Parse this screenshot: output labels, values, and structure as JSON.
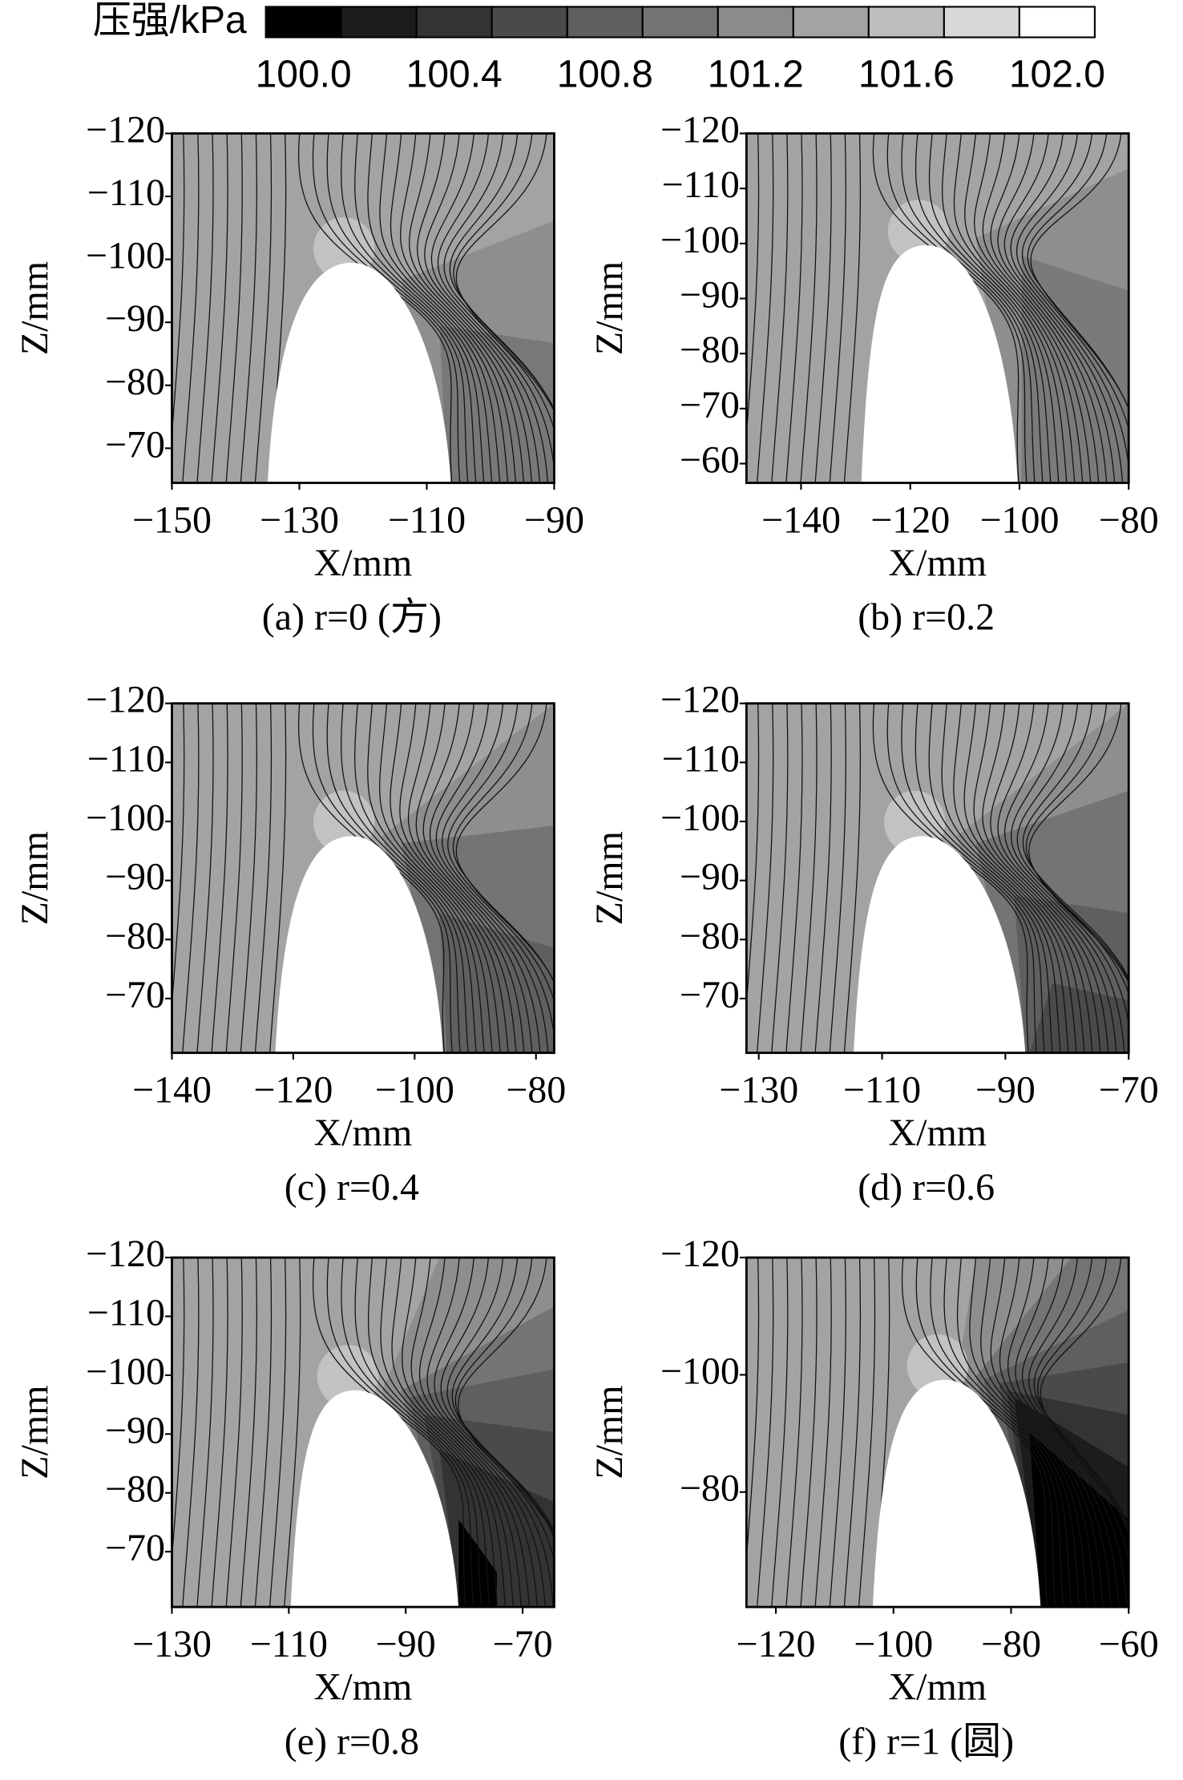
{
  "colorbar": {
    "label": "压强/kPa",
    "levels": [
      100.0,
      100.2,
      100.4,
      100.6,
      100.8,
      101.0,
      101.2,
      101.4,
      101.6,
      101.8,
      102.0
    ],
    "colors": [
      "#000000",
      "#1c1c1c",
      "#333333",
      "#4a4a4a",
      "#5f5f5f",
      "#747474",
      "#8b8b8b",
      "#a3a3a3",
      "#bdbdbd",
      "#d8d8d8",
      "#ffffff"
    ],
    "ticks": [
      {
        "value": 100.0,
        "label": "100.0"
      },
      {
        "value": 100.4,
        "label": "100.4"
      },
      {
        "value": 100.8,
        "label": "100.8"
      },
      {
        "value": 101.2,
        "label": "101.2"
      },
      {
        "value": 101.6,
        "label": "101.6"
      },
      {
        "value": 102.0,
        "label": "102.0"
      }
    ]
  },
  "chart_data": [
    {
      "type": "contour",
      "caption": "(a) r=0 (方)",
      "x_label": "X/mm",
      "y_label": "Z/mm",
      "xlim": [
        -150,
        -90
      ],
      "xticks": [
        {
          "value": -150,
          "label": "−150"
        },
        {
          "value": -130,
          "label": "−130"
        },
        {
          "value": -110,
          "label": "−110"
        },
        {
          "value": -90,
          "label": "−90"
        }
      ],
      "ylim": [
        -120,
        -64.5
      ],
      "yticks": [
        {
          "value": -120,
          "label": "−120"
        },
        {
          "value": -110,
          "label": "−110"
        },
        {
          "value": -100,
          "label": "−100"
        },
        {
          "value": -90,
          "label": "−90"
        },
        {
          "value": -80,
          "label": "−80"
        },
        {
          "value": -70,
          "label": "−70"
        }
      ]
    },
    {
      "type": "contour",
      "caption": "(b) r=0.2",
      "x_label": "X/mm",
      "y_label": "Z/mm",
      "xlim": [
        -150,
        -80
      ],
      "xticks": [
        {
          "value": -140,
          "label": "−140"
        },
        {
          "value": -120,
          "label": "−120"
        },
        {
          "value": -100,
          "label": "−100"
        },
        {
          "value": -80,
          "label": "−80"
        }
      ],
      "ylim": [
        -120,
        -56.5
      ],
      "yticks": [
        {
          "value": -120,
          "label": "−120"
        },
        {
          "value": -110,
          "label": "−110"
        },
        {
          "value": -100,
          "label": "−100"
        },
        {
          "value": -90,
          "label": "−90"
        },
        {
          "value": -80,
          "label": "−80"
        },
        {
          "value": -70,
          "label": "−70"
        },
        {
          "value": -60,
          "label": "−60"
        }
      ]
    },
    {
      "type": "contour",
      "caption": "(c) r=0.4",
      "x_label": "X/mm",
      "y_label": "Z/mm",
      "xlim": [
        -140,
        -77
      ],
      "xticks": [
        {
          "value": -140,
          "label": "−140"
        },
        {
          "value": -120,
          "label": "−120"
        },
        {
          "value": -100,
          "label": "−100"
        },
        {
          "value": -80,
          "label": "−80"
        }
      ],
      "ylim": [
        -120,
        -60.8
      ],
      "yticks": [
        {
          "value": -120,
          "label": "−120"
        },
        {
          "value": -110,
          "label": "−110"
        },
        {
          "value": -100,
          "label": "−100"
        },
        {
          "value": -90,
          "label": "−90"
        },
        {
          "value": -80,
          "label": "−80"
        },
        {
          "value": -70,
          "label": "−70"
        }
      ]
    },
    {
      "type": "contour",
      "caption": "(d) r=0.6",
      "x_label": "X/mm",
      "y_label": "Z/mm",
      "xlim": [
        -132,
        -70
      ],
      "xticks": [
        {
          "value": -130,
          "label": "−130"
        },
        {
          "value": -110,
          "label": "−110"
        },
        {
          "value": -90,
          "label": "−90"
        },
        {
          "value": -70,
          "label": "−70"
        }
      ],
      "ylim": [
        -120,
        -60.8
      ],
      "yticks": [
        {
          "value": -120,
          "label": "−120"
        },
        {
          "value": -110,
          "label": "−110"
        },
        {
          "value": -100,
          "label": "−100"
        },
        {
          "value": -90,
          "label": "−90"
        },
        {
          "value": -80,
          "label": "−80"
        },
        {
          "value": -70,
          "label": "−70"
        }
      ]
    },
    {
      "type": "contour",
      "caption": "(e) r=0.8",
      "x_label": "X/mm",
      "y_label": "Z/mm",
      "xlim": [
        -130,
        -64.6
      ],
      "xticks": [
        {
          "value": -130,
          "label": "−130"
        },
        {
          "value": -110,
          "label": "−110"
        },
        {
          "value": -90,
          "label": "−90"
        },
        {
          "value": -70,
          "label": "−70"
        }
      ],
      "ylim": [
        -120,
        -60.6
      ],
      "yticks": [
        {
          "value": -120,
          "label": "−120"
        },
        {
          "value": -110,
          "label": "−110"
        },
        {
          "value": -100,
          "label": "−100"
        },
        {
          "value": -90,
          "label": "−90"
        },
        {
          "value": -80,
          "label": "−80"
        },
        {
          "value": -70,
          "label": "−70"
        }
      ]
    },
    {
      "type": "contour",
      "caption": "(f) r=1 (圆)",
      "x_label": "X/mm",
      "y_label": "Z/mm",
      "xlim": [
        -125,
        -60
      ],
      "xticks": [
        {
          "value": -120,
          "label": "−120"
        },
        {
          "value": -100,
          "label": "−100"
        },
        {
          "value": -80,
          "label": "−80"
        },
        {
          "value": -60,
          "label": "−60"
        }
      ],
      "ylim": [
        -120,
        -60.4
      ],
      "yticks": [
        {
          "value": -120,
          "label": "−120"
        },
        {
          "value": -100,
          "label": "−100"
        },
        {
          "value": -80,
          "label": "−80"
        }
      ]
    }
  ]
}
